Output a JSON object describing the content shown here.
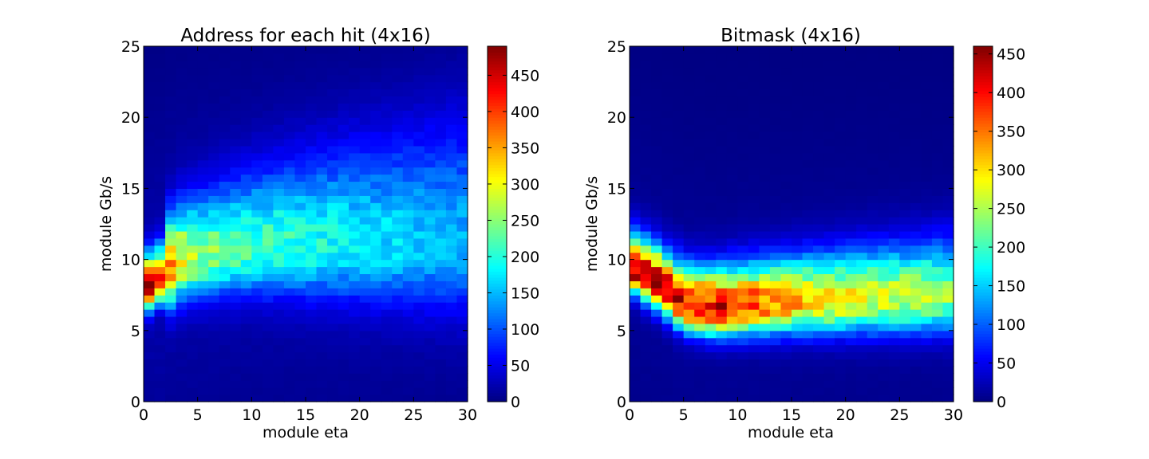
{
  "chart_data": [
    {
      "type": "heatmap",
      "title": "Address for each hit (4x16)",
      "xlabel": "module eta",
      "ylabel": "module Gb/s",
      "xlim": [
        0,
        30
      ],
      "ylim": [
        0,
        25
      ],
      "xticks": [
        0,
        5,
        10,
        15,
        20,
        25,
        30
      ],
      "yticks": [
        0,
        5,
        10,
        15,
        20,
        25
      ],
      "bins": {
        "x": 30,
        "y": 50,
        "x_bin_width": 1,
        "y_bin_width": 0.5
      },
      "colormap": "jet",
      "colorbar": {
        "min": 0,
        "max": 490,
        "ticks": [
          0,
          50,
          100,
          150,
          200,
          250,
          300,
          350,
          400,
          450
        ]
      },
      "distribution": {
        "description_values": "approximate bin counts read from the color scale",
        "peak": {
          "eta": 0.5,
          "gbps": 7.5,
          "count": 490
        },
        "ridge": [
          {
            "eta": 1,
            "center_gbps": 8.0,
            "peak_count": 440
          },
          {
            "eta": 3,
            "center_gbps": 9.8,
            "peak_count": 300
          },
          {
            "eta": 5,
            "center_gbps": 10.2,
            "peak_count": 240
          },
          {
            "eta": 10,
            "center_gbps": 10.8,
            "peak_count": 200
          },
          {
            "eta": 15,
            "center_gbps": 11.0,
            "peak_count": 180
          },
          {
            "eta": 20,
            "center_gbps": 11.0,
            "peak_count": 160
          },
          {
            "eta": 25,
            "center_gbps": 11.0,
            "peak_count": 140
          },
          {
            "eta": 30,
            "center_gbps": 11.0,
            "peak_count": 125
          }
        ],
        "background_count": 20
      }
    },
    {
      "type": "heatmap",
      "title": "Bitmask (4x16)",
      "xlabel": "module eta",
      "ylabel": "module Gb/s",
      "xlim": [
        0,
        30
      ],
      "ylim": [
        0,
        25
      ],
      "xticks": [
        0,
        5,
        10,
        15,
        20,
        25,
        30
      ],
      "yticks": [
        0,
        5,
        10,
        15,
        20,
        25
      ],
      "bins": {
        "x": 30,
        "y": 50,
        "x_bin_width": 1,
        "y_bin_width": 0.5
      },
      "colormap": "jet",
      "colorbar": {
        "min": 0,
        "max": 460,
        "ticks": [
          0,
          50,
          100,
          150,
          200,
          250,
          300,
          350,
          400,
          450
        ]
      },
      "distribution": {
        "description_values": "approximate bin counts read from the color scale",
        "peak": {
          "eta": 1.5,
          "gbps": 9.0,
          "count": 460
        },
        "ridge": [
          {
            "eta": 0,
            "center_gbps": 9.5,
            "peak_count": 440
          },
          {
            "eta": 3,
            "center_gbps": 8.0,
            "peak_count": 440
          },
          {
            "eta": 5,
            "center_gbps": 6.8,
            "peak_count": 410
          },
          {
            "eta": 8,
            "center_gbps": 6.5,
            "peak_count": 400
          },
          {
            "eta": 12,
            "center_gbps": 6.8,
            "peak_count": 360
          },
          {
            "eta": 17,
            "center_gbps": 7.0,
            "peak_count": 300
          },
          {
            "eta": 22,
            "center_gbps": 7.2,
            "peak_count": 270
          },
          {
            "eta": 26,
            "center_gbps": 7.3,
            "peak_count": 250
          },
          {
            "eta": 30,
            "center_gbps": 7.5,
            "peak_count": 230
          }
        ],
        "background_count": 10
      }
    }
  ]
}
